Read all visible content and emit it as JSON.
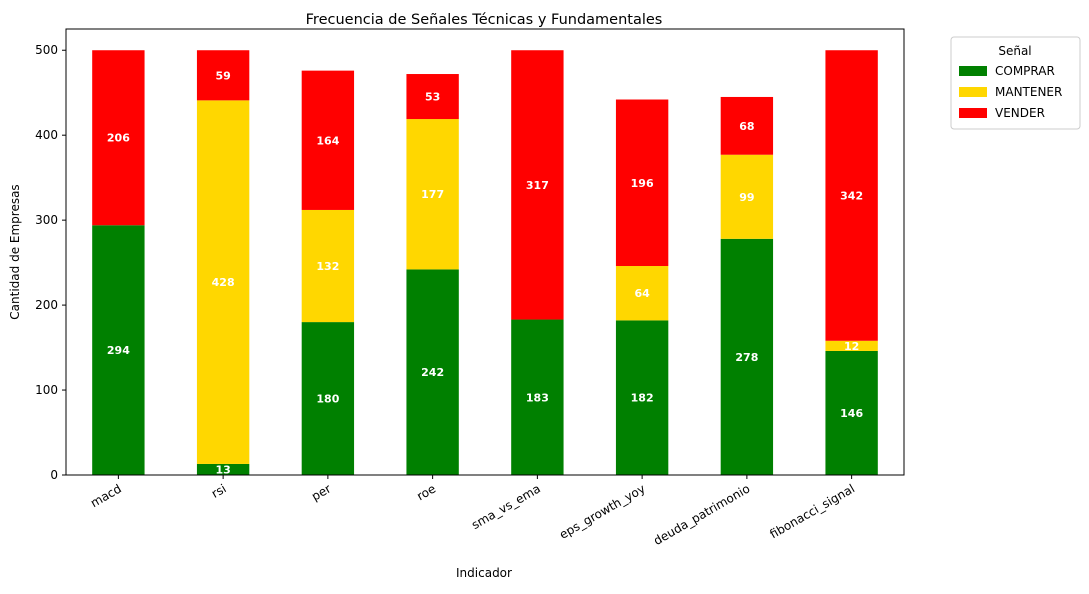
{
  "chart_data": {
    "type": "bar",
    "stacked": true,
    "title": "Frecuencia de Señales Técnicas y Fundamentales",
    "xlabel": "Indicador",
    "ylabel": "Cantidad de Empresas",
    "ylim": [
      0,
      525
    ],
    "yticks": [
      "0",
      "100",
      "200",
      "300",
      "400",
      "500"
    ],
    "categories": [
      "macd",
      "rsi",
      "per",
      "roe",
      "sma_vs_ema",
      "eps_growth_yoy",
      "deuda_patrimonio",
      "fibonacci_signal"
    ],
    "series": [
      {
        "name": "COMPRAR",
        "color": "#008000",
        "values": [
          294,
          13,
          180,
          242,
          183,
          182,
          278,
          146
        ]
      },
      {
        "name": "MANTENER",
        "color": "#FFD700",
        "values": [
          0,
          428,
          132,
          177,
          0,
          64,
          99,
          12
        ]
      },
      {
        "name": "VENDER",
        "color": "#FF0000",
        "values": [
          206,
          59,
          164,
          53,
          317,
          196,
          68,
          342
        ]
      }
    ],
    "legend": {
      "title": "Señal",
      "placement": "outside-top-right"
    },
    "grid": false
  }
}
